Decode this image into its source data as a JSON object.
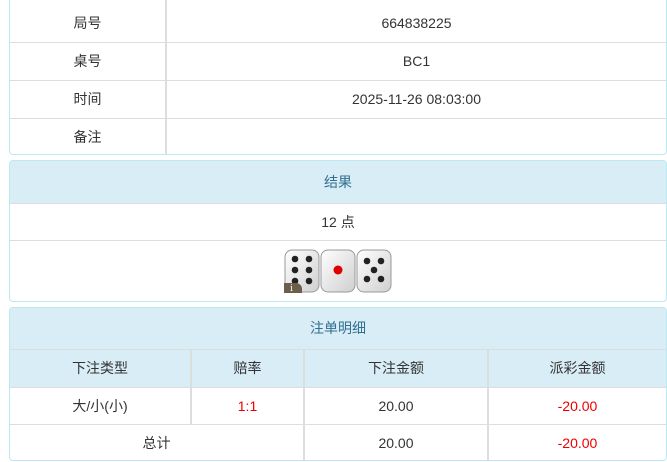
{
  "info": {
    "rows": [
      {
        "label": "局号",
        "value": "664838225"
      },
      {
        "label": "桌号",
        "value": "BC1"
      },
      {
        "label": "时间",
        "value": "2025-11-26 08:03:00"
      },
      {
        "label": "备注",
        "value": ""
      }
    ]
  },
  "result": {
    "title": "结果",
    "points": "12 点",
    "dice": [
      6,
      1,
      5
    ],
    "info_badge": "i"
  },
  "bets": {
    "title": "注单明细",
    "columns": [
      "下注类型",
      "赔率",
      "下注金额",
      "派彩金额"
    ],
    "rows": [
      {
        "type": "大/小(小)",
        "odds": "1:1",
        "amount": "20.00",
        "payout": "-20.00"
      }
    ],
    "total": {
      "label": "总计",
      "amount": "20.00",
      "payout": "-20.00"
    }
  },
  "colors": {
    "header_bg": "#d9edf7",
    "header_text": "#31708f",
    "negative": "#e00000"
  }
}
